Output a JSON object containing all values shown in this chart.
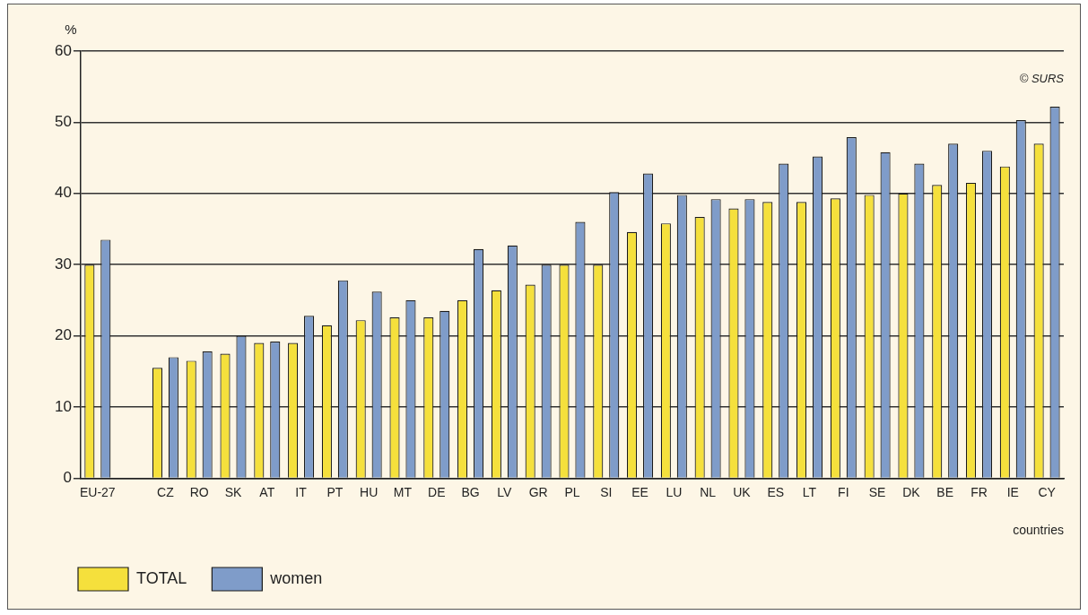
{
  "chart_data": {
    "type": "bar",
    "ylabel": "%",
    "xlabel": "countries",
    "annotations": [
      "© SURS"
    ],
    "categories": [
      "EU-27",
      null,
      "CZ",
      "RO",
      "SK",
      "AT",
      "IT",
      "PT",
      "HU",
      "MT",
      "DE",
      "BG",
      "LV",
      "GR",
      "PL",
      "SI",
      "EE",
      "LU",
      "NL",
      "UK",
      "ES",
      "LT",
      "FI",
      "SE",
      "DK",
      "BE",
      "FR",
      "IE",
      "CY"
    ],
    "series": [
      {
        "name": "TOTAL",
        "color": "#f5e03c",
        "values": [
          30,
          null,
          15.5,
          16.5,
          17.5,
          19,
          19,
          21.5,
          22.2,
          22.6,
          22.6,
          25,
          26.4,
          27.2,
          30,
          30,
          34.6,
          35.8,
          36.7,
          37.9,
          38.8,
          38.8,
          39.3,
          39.8,
          40,
          41.2,
          41.5,
          43.8,
          47
        ]
      },
      {
        "name": "women",
        "color": "#7f9cc9",
        "values": [
          33.5,
          null,
          17,
          17.8,
          20,
          19.2,
          22.8,
          27.8,
          26.2,
          25,
          23.5,
          32.2,
          32.7,
          30,
          36,
          40.2,
          42.8,
          39.8,
          39.2,
          39.2,
          44.2,
          45.2,
          47.9,
          45.8,
          44.2,
          47,
          46,
          50.3,
          52.2
        ]
      }
    ],
    "ylim": [
      0,
      60
    ],
    "yticks": [
      0,
      10,
      20,
      30,
      40,
      50,
      60
    ],
    "grid": "y",
    "legend": "bottom left"
  }
}
